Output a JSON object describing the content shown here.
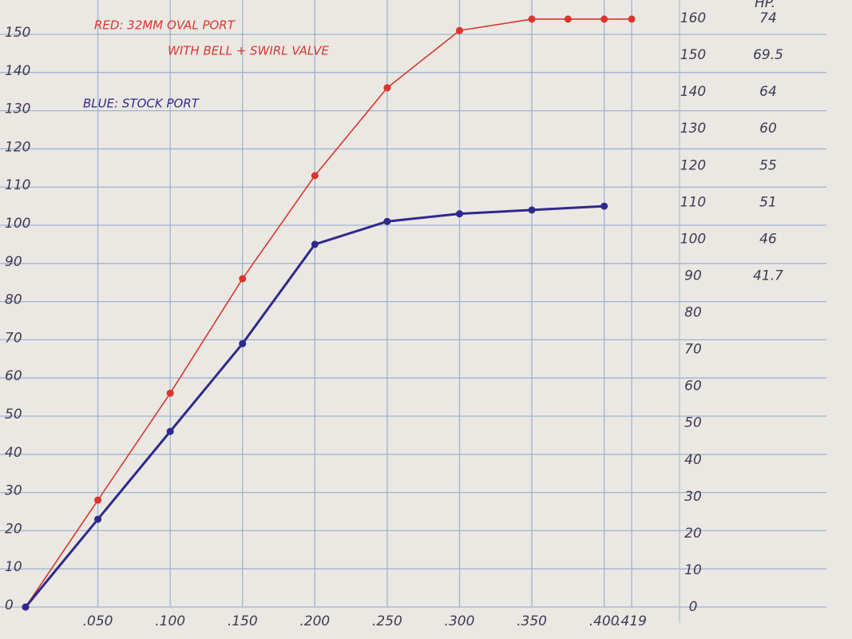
{
  "chart_data": {
    "type": "line",
    "annotations": [
      {
        "text": "RED: 32MM OVAL PORT",
        "color": "#d8362e"
      },
      {
        "text": "WITH BELL + SWIRL VALVE",
        "color": "#d8362e"
      },
      {
        "text": "BLUE: STOCK PORT",
        "color": "#2e2a8c"
      }
    ],
    "series": [
      {
        "name": "RED",
        "color": "#d8362e",
        "x": [
          0,
          0.05,
          0.1,
          0.15,
          0.2,
          0.25,
          0.3,
          0.35,
          0.375,
          0.4,
          0.419
        ],
        "values": [
          0,
          28,
          56,
          86,
          113,
          136,
          151,
          154,
          154,
          154,
          154
        ]
      },
      {
        "name": "BLUE",
        "color": "#2e2a8c",
        "x": [
          0,
          0.05,
          0.1,
          0.15,
          0.2,
          0.25,
          0.3,
          0.35,
          0.4
        ],
        "values": [
          0,
          23,
          46,
          69,
          95,
          101,
          103,
          104,
          105
        ]
      }
    ],
    "xlim": [
      0,
      0.43
    ],
    "xticks": [
      {
        "value": 0.05,
        "label": ".050"
      },
      {
        "value": 0.1,
        "label": ".100"
      },
      {
        "value": 0.15,
        "label": ".150"
      },
      {
        "value": 0.2,
        "label": ".200"
      },
      {
        "value": 0.25,
        "label": ".250"
      },
      {
        "value": 0.3,
        "label": ".300"
      },
      {
        "value": 0.35,
        "label": ".350"
      },
      {
        "value": 0.4,
        "label": ".400"
      },
      {
        "value": 0.419,
        "label": ".419"
      }
    ],
    "ylim": [
      0,
      159
    ],
    "yticks": [
      0,
      10,
      20,
      30,
      40,
      50,
      60,
      70,
      80,
      90,
      100,
      110,
      120,
      130,
      140,
      150
    ],
    "y2lim": [
      0,
      165
    ],
    "y2ticks": [
      0,
      10,
      20,
      30,
      40,
      50,
      60,
      70,
      80,
      90,
      100,
      110,
      120,
      130,
      140,
      150,
      160
    ],
    "hp_title": "HP.",
    "hp_ticks": [
      {
        "value": 160,
        "label": "74"
      },
      {
        "value": 150,
        "label": "69.5"
      },
      {
        "value": 140,
        "label": "64"
      },
      {
        "value": 130,
        "label": "60"
      },
      {
        "value": 120,
        "label": "55"
      },
      {
        "value": 110,
        "label": "51"
      },
      {
        "value": 100,
        "label": "46"
      },
      {
        "value": 90,
        "label": "41.7"
      }
    ],
    "grid": true
  }
}
